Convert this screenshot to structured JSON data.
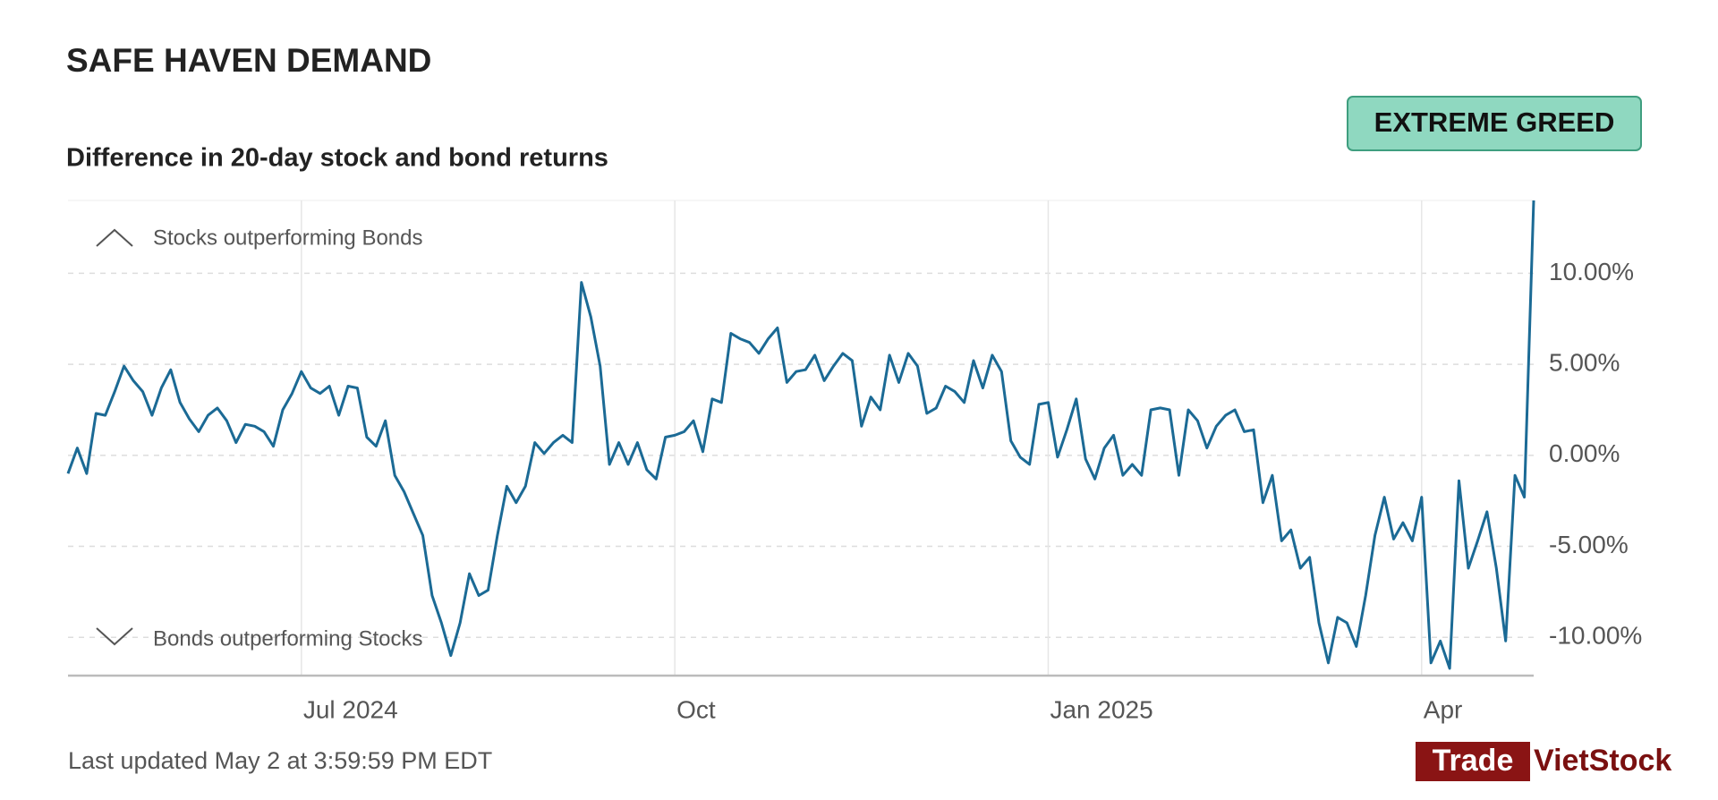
{
  "header": {
    "title": "SAFE HAVEN DEMAND",
    "badge": "EXTREME GREED"
  },
  "chart_data": {
    "type": "line",
    "title": "Difference in 20-day stock and bond returns",
    "annotations": [
      "Stocks outperforming Bonds",
      "Bonds outperforming Stocks"
    ],
    "categories": [
      null,
      null,
      null,
      null,
      null,
      null,
      null,
      null,
      null,
      null,
      null,
      null,
      null,
      null,
      null,
      null,
      null,
      null,
      null,
      null,
      null,
      null,
      null,
      null,
      null,
      "Jul 2024",
      null,
      null,
      null,
      null,
      null,
      null,
      null,
      null,
      null,
      null,
      null,
      null,
      null,
      null,
      null,
      null,
      null,
      null,
      null,
      null,
      null,
      null,
      null,
      null,
      null,
      null,
      null,
      null,
      null,
      null,
      null,
      null,
      null,
      null,
      null,
      null,
      null,
      null,
      null,
      "Oct",
      null,
      null,
      null,
      null,
      null,
      null,
      null,
      null,
      null,
      null,
      null,
      null,
      null,
      null,
      null,
      null,
      null,
      null,
      null,
      null,
      null,
      null,
      null,
      null,
      null,
      null,
      null,
      null,
      null,
      null,
      null,
      null,
      null,
      null,
      null,
      null,
      null,
      null,
      null,
      "Jan 2025",
      null,
      null,
      null,
      null,
      null,
      null,
      null,
      null,
      null,
      null,
      null,
      null,
      null,
      null,
      null,
      null,
      null,
      null,
      null,
      null,
      null,
      null,
      null,
      null,
      null,
      null,
      null,
      null,
      null,
      null,
      null,
      null,
      null,
      null,
      null,
      null,
      null,
      null,
      null,
      "Apr",
      null,
      null,
      null,
      null,
      null,
      null,
      null,
      null,
      null,
      null,
      null,
      null
    ],
    "series": [
      {
        "name": "Difference in 20-day stock and bond returns",
        "color": "#1b6a95",
        "values": [
          -1.0,
          0.4,
          -1.0,
          2.3,
          2.2,
          3.5,
          4.9,
          4.1,
          3.5,
          2.2,
          3.7,
          4.7,
          2.9,
          2.0,
          1.3,
          2.2,
          2.6,
          1.9,
          0.7,
          1.7,
          1.6,
          1.3,
          0.5,
          2.5,
          3.4,
          4.6,
          3.7,
          3.4,
          3.8,
          2.2,
          3.8,
          3.7,
          1.0,
          0.5,
          1.9,
          -1.1,
          -2.0,
          -3.2,
          -4.4,
          -7.7,
          -9.2,
          -11.0,
          -9.2,
          -6.5,
          -7.7,
          -7.4,
          -4.4,
          -1.7,
          -2.6,
          -1.7,
          0.7,
          0.1,
          0.7,
          1.1,
          0.7,
          9.5,
          7.6,
          4.9,
          -0.5,
          0.7,
          -0.5,
          0.7,
          -0.8,
          -1.3,
          1.0,
          1.1,
          1.3,
          1.9,
          0.2,
          3.1,
          2.9,
          6.7,
          6.4,
          6.2,
          5.6,
          6.4,
          7.0,
          4.0,
          4.6,
          4.7,
          5.5,
          4.1,
          4.9,
          5.6,
          5.2,
          1.6,
          3.2,
          2.5,
          5.5,
          4.0,
          5.6,
          4.9,
          2.3,
          2.6,
          3.8,
          3.5,
          2.9,
          5.2,
          3.7,
          5.5,
          4.6,
          0.8,
          -0.1,
          -0.5,
          2.8,
          2.9,
          -0.1,
          1.4,
          3.1,
          -0.2,
          -1.3,
          0.4,
          1.1,
          -1.1,
          -0.5,
          -1.1,
          2.5,
          2.6,
          2.5,
          -1.1,
          2.5,
          1.9,
          0.4,
          1.6,
          2.2,
          2.5,
          1.3,
          1.4,
          -2.6,
          -1.1,
          -4.7,
          -4.1,
          -6.2,
          -5.6,
          -9.2,
          -11.4,
          -8.9,
          -9.2,
          -10.5,
          -7.7,
          -4.4,
          -2.3,
          -4.6,
          -3.7,
          -4.7,
          -2.3,
          -11.4,
          -10.2,
          -11.7,
          -1.4,
          -6.2,
          -4.7,
          -3.1,
          -6.2,
          -10.2,
          -1.1,
          -2.3,
          14.0
        ]
      }
    ],
    "ylim": [
      -12.1,
      14
    ],
    "yticks": [
      {
        "value": 10,
        "label": "10.00%"
      },
      {
        "value": 5,
        "label": "5.00%"
      },
      {
        "value": 0,
        "label": "0.00%"
      },
      {
        "value": -5,
        "label": "-5.00%"
      },
      {
        "value": -10,
        "label": "-10.00%"
      }
    ],
    "grid": true
  },
  "footer": {
    "updated": "Last updated May 2 at 3:59:59 PM EDT",
    "watermark": [
      "Trade",
      "VietStock"
    ]
  }
}
